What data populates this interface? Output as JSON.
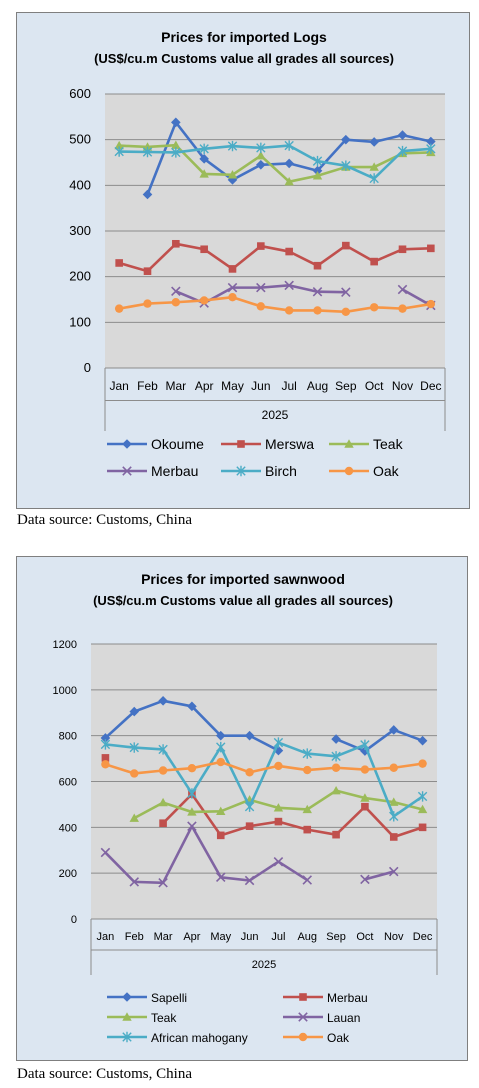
{
  "charts": [
    {
      "source_text": "Data source: Customs, China"
    },
    {
      "source_text": "Data source: Customs, China"
    }
  ],
  "chart_data": [
    {
      "type": "line",
      "title": "Prices for imported Logs",
      "subtitle": "(US$/cu.m Customs value all grades all sources)",
      "categories": [
        "Jan",
        "Feb",
        "Mar",
        "Apr",
        "May",
        "Jun",
        "Jul",
        "Aug",
        "Sep",
        "Oct",
        "Nov",
        "Dec"
      ],
      "xlabel": "2025",
      "ylabel": "",
      "ylim": [
        0,
        600
      ],
      "yticks": [
        0,
        100,
        200,
        300,
        400,
        500,
        600
      ],
      "grid": true,
      "legend_position": "bottom",
      "series": [
        {
          "name": "Okoume",
          "color": "#4472c4",
          "marker": "diamond",
          "values": [
            null,
            380,
            538,
            458,
            412,
            445,
            448,
            432,
            500,
            495,
            510,
            496
          ]
        },
        {
          "name": "Merswa",
          "color": "#c0504d",
          "marker": "square",
          "values": [
            230,
            212,
            272,
            260,
            217,
            267,
            255,
            224,
            268,
            233,
            260,
            262
          ]
        },
        {
          "name": "Teak",
          "color": "#9bbb59",
          "marker": "triangle",
          "values": [
            487,
            484,
            488,
            425,
            423,
            465,
            408,
            421,
            440,
            440,
            470,
            472
          ]
        },
        {
          "name": "Merbau",
          "color": "#8064a2",
          "marker": "x",
          "values": [
            null,
            null,
            168,
            142,
            176,
            176,
            181,
            167,
            166,
            null,
            172,
            137
          ]
        },
        {
          "name": "Birch",
          "color": "#4bacc6",
          "marker": "star",
          "values": [
            474,
            473,
            472,
            480,
            486,
            482,
            487,
            453,
            443,
            415,
            475,
            480
          ]
        },
        {
          "name": "Oak",
          "color": "#f79646",
          "marker": "circle",
          "values": [
            130,
            141,
            144,
            148,
            155,
            135,
            126,
            126,
            123,
            133,
            130,
            140
          ]
        }
      ]
    },
    {
      "type": "line",
      "title": "Prices for imported sawnwood",
      "subtitle": "(US$/cu.m Customs value all grades all sources)",
      "categories": [
        "Jan",
        "Feb",
        "Mar",
        "Apr",
        "May",
        "Jun",
        "Jul",
        "Aug",
        "Sep",
        "Oct",
        "Nov",
        "Dec"
      ],
      "xlabel": "2025",
      "ylabel": "",
      "ylim": [
        0,
        1200
      ],
      "yticks": [
        0,
        200,
        400,
        600,
        800,
        1000,
        1200
      ],
      "grid": true,
      "legend_position": "bottom",
      "series": [
        {
          "name": "Sapelli",
          "color": "#4472c4",
          "marker": "diamond",
          "values": [
            790,
            905,
            952,
            928,
            800,
            800,
            735,
            null,
            785,
            733,
            825,
            778
          ]
        },
        {
          "name": "Merbau",
          "color": "#c0504d",
          "marker": "square",
          "values": [
            703,
            null,
            418,
            545,
            365,
            405,
            425,
            390,
            368,
            490,
            358,
            400
          ]
        },
        {
          "name": "Teak",
          "color": "#9bbb59",
          "marker": "triangle",
          "values": [
            null,
            440,
            508,
            467,
            470,
            520,
            485,
            478,
            560,
            528,
            510,
            478
          ]
        },
        {
          "name": "Lauan",
          "color": "#8064a2",
          "marker": "x",
          "values": [
            290,
            162,
            158,
            405,
            182,
            168,
            250,
            170,
            null,
            173,
            207,
            null
          ]
        },
        {
          "name": "African mahogany",
          "color": "#4bacc6",
          "marker": "star",
          "values": [
            762,
            748,
            740,
            548,
            750,
            490,
            770,
            722,
            710,
            760,
            448,
            535
          ]
        },
        {
          "name": "Oak",
          "color": "#f79646",
          "marker": "circle",
          "values": [
            675,
            635,
            648,
            658,
            685,
            640,
            668,
            650,
            660,
            652,
            660,
            678
          ]
        }
      ]
    }
  ]
}
